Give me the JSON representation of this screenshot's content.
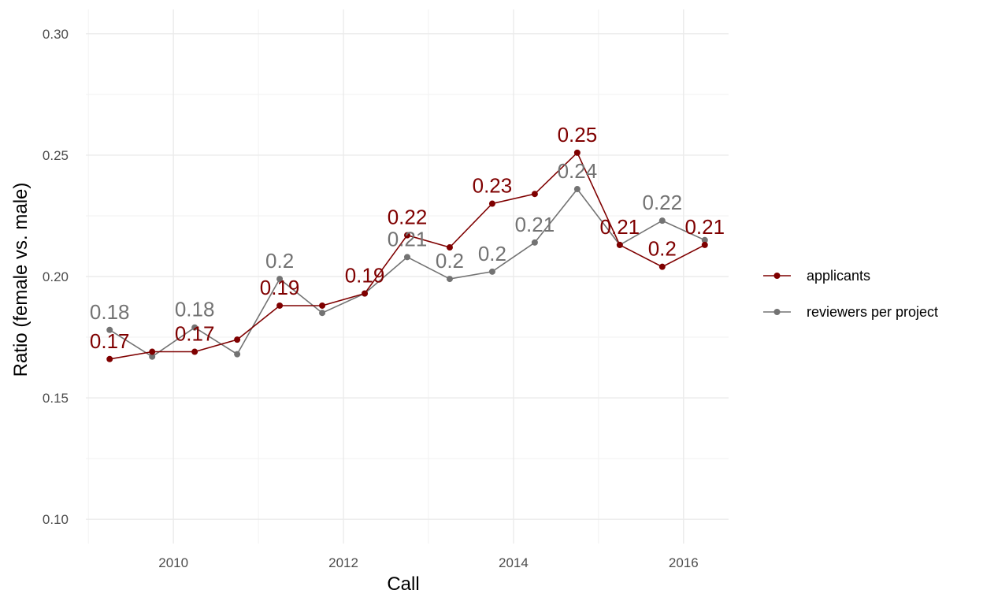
{
  "chart_data": {
    "type": "line",
    "xlabel": "Call",
    "ylabel": "Ratio (female vs. male)",
    "xlim": [
      2008.97,
      2016.53
    ],
    "ylim": [
      0.09,
      0.31
    ],
    "x_ticks": [
      2010,
      2012,
      2014,
      2016
    ],
    "x_tick_labels": [
      "2010",
      "2012",
      "2014",
      "2016"
    ],
    "y_ticks": [
      0.1,
      0.15,
      0.2,
      0.25,
      0.3
    ],
    "y_tick_labels": [
      "0.10",
      "0.15",
      "0.20",
      "0.25",
      "0.30"
    ],
    "grid": true,
    "legend_position": "right",
    "series": [
      {
        "name": "applicants",
        "color": "#7f0000",
        "x": [
          2009.25,
          2009.75,
          2010.25,
          2010.75,
          2011.25,
          2011.75,
          2012.25,
          2012.75,
          2013.25,
          2013.75,
          2014.25,
          2014.75,
          2015.25,
          2015.75,
          2016.25
        ],
        "values": [
          0.166,
          0.169,
          0.169,
          0.174,
          0.188,
          0.188,
          0.193,
          0.217,
          0.212,
          0.23,
          0.234,
          0.251,
          0.213,
          0.204,
          0.213
        ],
        "labels": [
          "0.17",
          "",
          "0.17",
          "",
          "0.19",
          "",
          "0.19",
          "0.22",
          "",
          "0.23",
          "",
          "0.25",
          "0.21",
          "0.2",
          "0.21"
        ]
      },
      {
        "name": "reviewers per project",
        "color": "#737373",
        "x": [
          2009.25,
          2009.75,
          2010.25,
          2010.75,
          2011.25,
          2011.75,
          2012.25,
          2012.75,
          2013.25,
          2013.75,
          2014.25,
          2014.75,
          2015.25,
          2015.75,
          2016.25
        ],
        "values": [
          0.178,
          0.167,
          0.179,
          0.168,
          0.199,
          0.185,
          0.193,
          0.208,
          0.199,
          0.202,
          0.214,
          0.236,
          0.213,
          0.223,
          0.215
        ],
        "labels": [
          "0.18",
          "",
          "0.18",
          "",
          "0.2",
          "",
          "",
          "0.21",
          "0.2",
          "0.2",
          "0.21",
          "0.24",
          "",
          "0.22",
          ""
        ]
      }
    ]
  }
}
